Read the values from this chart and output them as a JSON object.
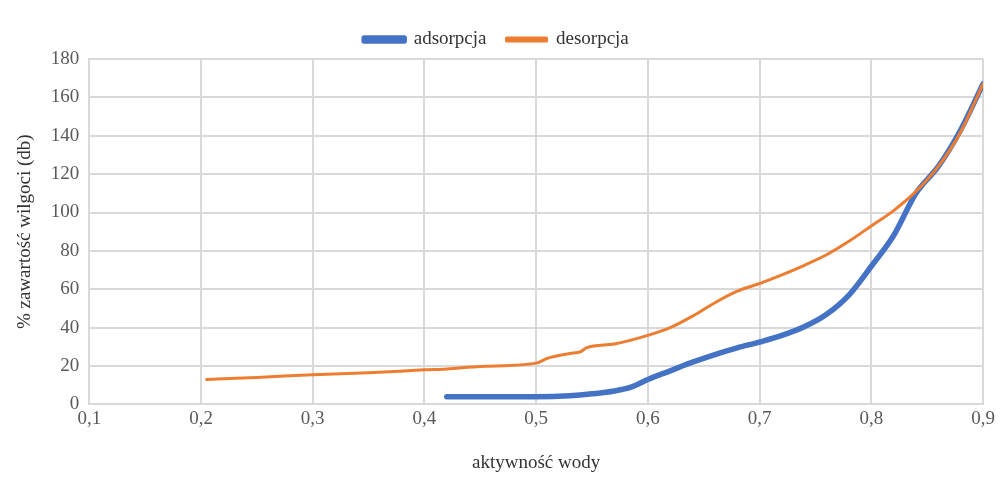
{
  "chart_data": {
    "type": "line",
    "xlabel": "aktywność wody",
    "ylabel": "% zawartość wilgoci (db)",
    "xlim": [
      0.1,
      0.9
    ],
    "xticks": [
      {
        "value": 0.1,
        "label": "0,1"
      },
      {
        "value": 0.2,
        "label": "0,2"
      },
      {
        "value": 0.3,
        "label": "0,3"
      },
      {
        "value": 0.4,
        "label": "0,4"
      },
      {
        "value": 0.5,
        "label": "0,5"
      },
      {
        "value": 0.6,
        "label": "0,6"
      },
      {
        "value": 0.7,
        "label": "0,7"
      },
      {
        "value": 0.8,
        "label": "0,8"
      },
      {
        "value": 0.9,
        "label": "0,9"
      }
    ],
    "ylim": [
      0,
      180
    ],
    "yticks": [
      0,
      20,
      40,
      60,
      80,
      100,
      120,
      140,
      160,
      180
    ],
    "grid": true,
    "legend": "top",
    "marker": "none",
    "line_style": "solid",
    "series": [
      {
        "name": "adsorpcja",
        "color": "#4472c4",
        "x": [
          0.42,
          0.45,
          0.5,
          0.53,
          0.55,
          0.57,
          0.585,
          0.6,
          0.62,
          0.64,
          0.66,
          0.68,
          0.7,
          0.72,
          0.74,
          0.76,
          0.78,
          0.8,
          0.82,
          0.84,
          0.86,
          0.88,
          0.9
        ],
        "values": [
          4,
          4,
          4,
          4.5,
          5.5,
          7,
          9,
          13,
          17.5,
          22,
          26,
          29.5,
          32.5,
          36,
          40.5,
          47,
          57,
          72,
          88,
          110,
          124,
          143,
          167
        ]
      },
      {
        "name": "desorpcja",
        "color": "#ed7d31",
        "x": [
          0.205,
          0.25,
          0.3,
          0.35,
          0.4,
          0.42,
          0.45,
          0.5,
          0.51,
          0.53,
          0.54,
          0.545,
          0.57,
          0.6,
          0.62,
          0.64,
          0.66,
          0.68,
          0.7,
          0.72,
          0.74,
          0.76,
          0.78,
          0.8,
          0.82,
          0.84,
          0.86,
          0.88,
          0.9
        ],
        "values": [
          13,
          14,
          15.5,
          16.5,
          18,
          18.5,
          19.8,
          21.5,
          24,
          26.5,
          27.5,
          29.5,
          31.5,
          36,
          40,
          46,
          53,
          59,
          63,
          67.5,
          72.5,
          78,
          85,
          93,
          101,
          111,
          124,
          142,
          167
        ]
      }
    ]
  }
}
